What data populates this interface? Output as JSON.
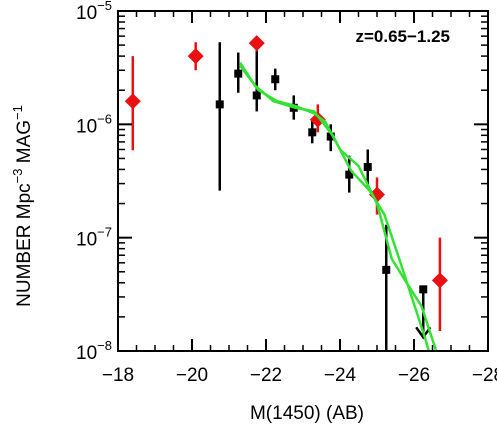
{
  "chart_data": {
    "type": "scatter",
    "annotation": "z=0.65−1.25",
    "xlabel": "M(1450)  (AB)",
    "ylabel_parts": [
      "NUMBER  Mpc",
      "−3",
      "  MAG",
      "−1"
    ],
    "xlim": [
      -18,
      -28
    ],
    "ylim": [
      1e-08,
      1e-05
    ],
    "yscale": "log",
    "x_ticks": [
      -18,
      -20,
      -22,
      -24,
      -26,
      -28
    ],
    "x_tick_labels": [
      "−18",
      "−20",
      "−22",
      "−24",
      "−26",
      "−28"
    ],
    "y_ticks": [
      1e-08,
      1e-07,
      1e-06,
      1e-05
    ],
    "y_tick_labels": [
      {
        "base": "10",
        "exp": "−8"
      },
      {
        "base": "10",
        "exp": "−7"
      },
      {
        "base": "10",
        "exp": "−6"
      },
      {
        "base": "10",
        "exp": "−5"
      }
    ],
    "grid": false,
    "colors": {
      "black_series": "#000000",
      "red_series": "#e81010",
      "model_curves": "#33e233",
      "axes": "#000000"
    },
    "series": [
      {
        "marker": "square",
        "color": "#000000",
        "points": [
          {
            "x": -20.75,
            "y": 1.5e-06,
            "ylo": 2.6e-07,
            "yhi": 5.3e-06
          },
          {
            "x": -21.25,
            "y": 2.8e-06,
            "ylo": 1.9e-06,
            "yhi": 4.3e-06
          },
          {
            "x": -21.75,
            "y": 1.8e-06,
            "ylo": 1.3e-06,
            "yhi": 4.6e-06
          },
          {
            "x": -22.25,
            "y": 2.5e-06,
            "ylo": 2e-06,
            "yhi": 3.1e-06
          },
          {
            "x": -22.75,
            "y": 1.4e-06,
            "ylo": 1.1e-06,
            "yhi": 1.8e-06
          },
          {
            "x": -23.25,
            "y": 8.5e-07,
            "ylo": 6.8e-07,
            "yhi": 1.1e-06
          },
          {
            "x": -23.75,
            "y": 7.8e-07,
            "ylo": 5.8e-07,
            "yhi": 1e-06
          },
          {
            "x": -24.25,
            "y": 3.6e-07,
            "ylo": 2.5e-07,
            "yhi": 5.3e-07
          },
          {
            "x": -24.75,
            "y": 4.2e-07,
            "ylo": 2.8e-07,
            "yhi": 6e-07
          },
          {
            "x": -25.25,
            "y": 5.2e-08,
            "ylo": 1e-08,
            "yhi": 1.3e-07
          },
          {
            "x": -26.25,
            "y": 3.5e-08,
            "upper_limit": true
          }
        ]
      },
      {
        "marker": "diamond",
        "color": "#e81010",
        "points": [
          {
            "x": -18.4,
            "y": 1.6e-06,
            "ylo": 5.9e-07,
            "yhi": 4e-06
          },
          {
            "x": -20.1,
            "y": 4e-06,
            "ylo": 3e-06,
            "yhi": 5.3e-06
          },
          {
            "x": -21.75,
            "y": 5.2e-06,
            "ylo": 4.4e-06,
            "yhi": 6e-06
          },
          {
            "x": -23.4,
            "y": 1.1e-06,
            "ylo": 8.5e-07,
            "yhi": 1.5e-06
          },
          {
            "x": -25.0,
            "y": 2.4e-07,
            "ylo": 1.6e-07,
            "yhi": 3.4e-07
          },
          {
            "x": -26.7,
            "y": 4.2e-08,
            "ylo": 1.5e-08,
            "yhi": 1e-07
          }
        ]
      },
      {
        "marker": "line",
        "color": "#33e233",
        "points": [
          {
            "x": -21.3,
            "y": 3.5e-06
          },
          {
            "x": -21.7,
            "y": 2.2e-06
          },
          {
            "x": -22.2,
            "y": 1.6e-06
          },
          {
            "x": -22.8,
            "y": 1.4e-06
          },
          {
            "x": -23.3,
            "y": 1.3e-06
          },
          {
            "x": -23.8,
            "y": 8e-07
          },
          {
            "x": -24.3,
            "y": 3.9e-07
          },
          {
            "x": -24.8,
            "y": 2.6e-07
          },
          {
            "x": -25.2,
            "y": 1.6e-07
          },
          {
            "x": -25.6,
            "y": 6.5e-08
          },
          {
            "x": -26.0,
            "y": 2.6e-08
          },
          {
            "x": -26.3,
            "y": 1.3e-08
          },
          {
            "x": -26.4,
            "y": 1e-08
          }
        ]
      },
      {
        "marker": "line",
        "color": "#33e233",
        "points": [
          {
            "x": -21.3,
            "y": 3.3e-06
          },
          {
            "x": -21.8,
            "y": 2e-06
          },
          {
            "x": -22.3,
            "y": 1.6e-06
          },
          {
            "x": -22.8,
            "y": 1.45e-06
          },
          {
            "x": -23.3,
            "y": 1.25e-06
          },
          {
            "x": -23.6,
            "y": 1.05e-06
          },
          {
            "x": -24.0,
            "y": 6e-07
          },
          {
            "x": -24.5,
            "y": 4.3e-07
          },
          {
            "x": -25.0,
            "y": 2e-07
          },
          {
            "x": -25.4,
            "y": 6.5e-08
          },
          {
            "x": -25.8,
            "y": 4e-08
          },
          {
            "x": -26.2,
            "y": 2.5e-08
          },
          {
            "x": -26.6,
            "y": 1e-08
          }
        ]
      }
    ]
  }
}
